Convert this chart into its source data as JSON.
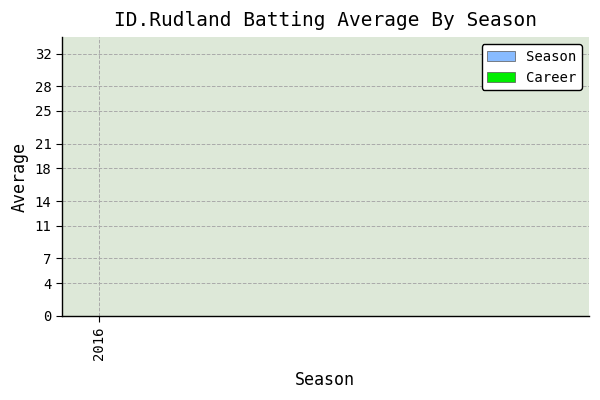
{
  "title": "ID.Rudland Batting Average By Season",
  "xlabel": "Season",
  "ylabel": "Average",
  "x_ticks": [
    2016
  ],
  "y_ticks": [
    0,
    4,
    7,
    11,
    14,
    18,
    21,
    25,
    28,
    32
  ],
  "ylim": [
    0,
    34
  ],
  "xlim": [
    2015.5,
    2022.5
  ],
  "legend_labels": [
    "Season",
    "Career"
  ],
  "legend_colors": [
    "#88bbff",
    "#00ee00"
  ],
  "bg_color": "#ffffff",
  "plot_bg_color": "#dde8d8",
  "grid_color": "#aaaaaa",
  "title_fontsize": 14,
  "label_fontsize": 12,
  "tick_fontsize": 10
}
